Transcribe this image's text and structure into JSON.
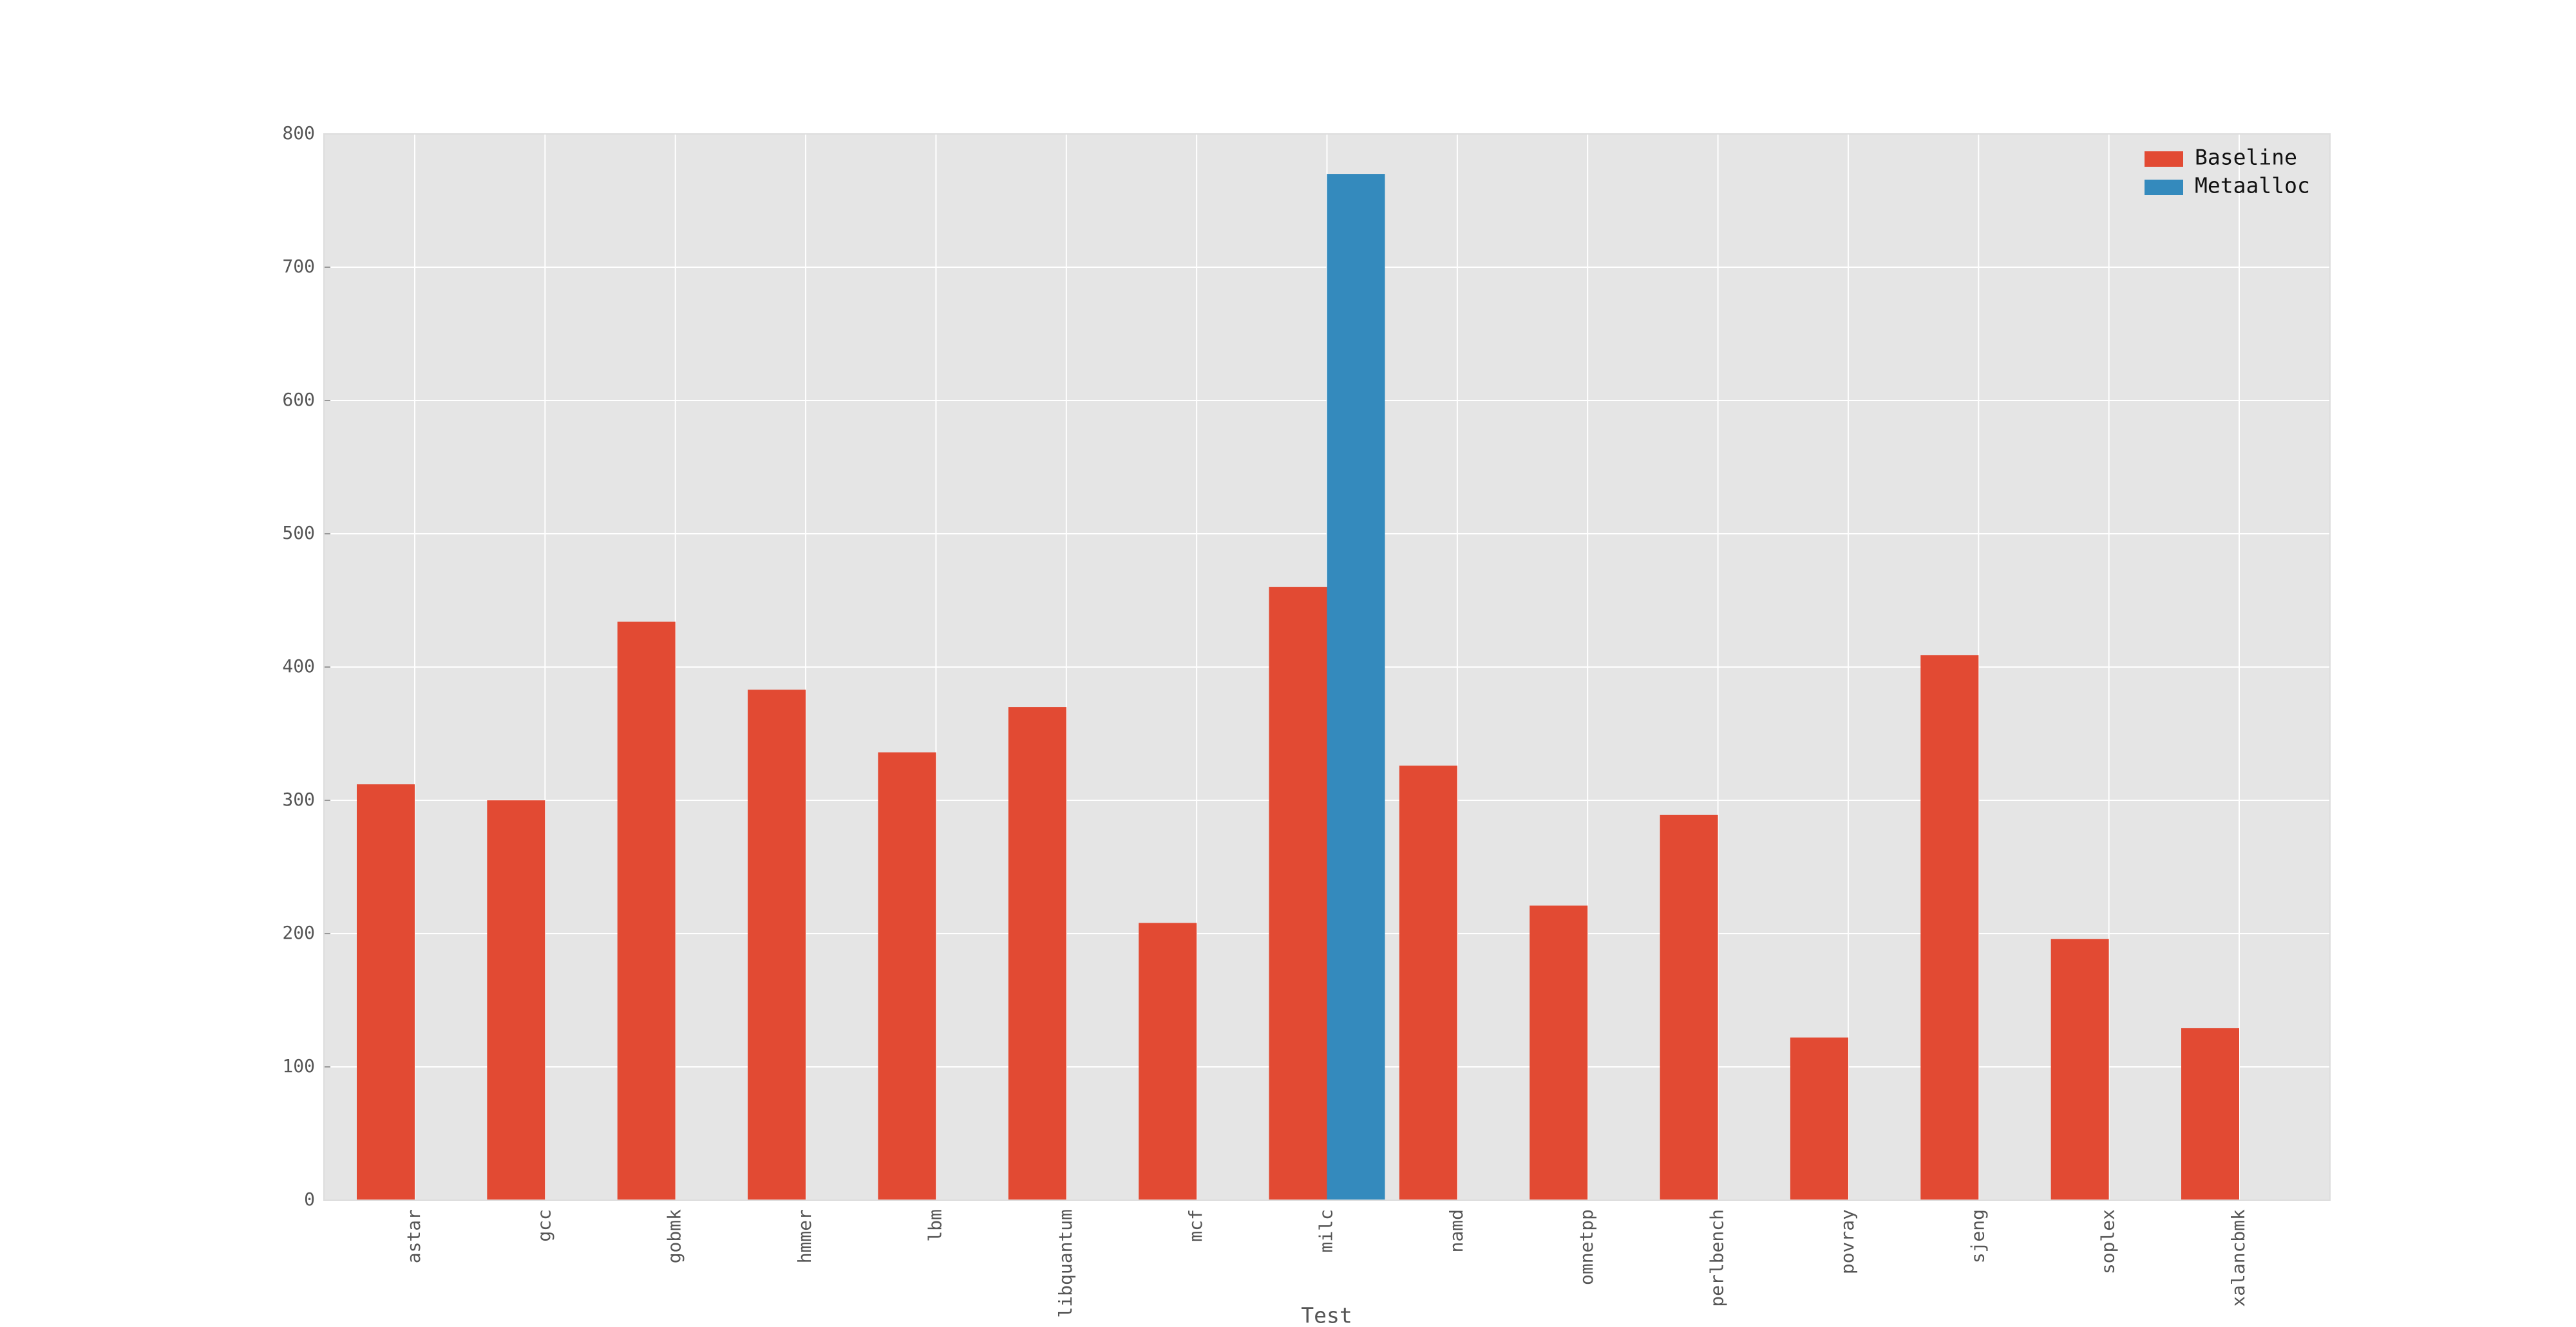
{
  "chart_data": {
    "type": "bar",
    "x_label": "Test",
    "categories": [
      "astar",
      "gcc",
      "gobmk",
      "hmmer",
      "lbm",
      "libquantum",
      "mcf",
      "milc",
      "namd",
      "omnetpp",
      "perlbench",
      "povray",
      "sjeng",
      "soplex",
      "xalancbmk"
    ],
    "series": [
      {
        "name": "Baseline",
        "color": "#E24A33",
        "values": [
          312,
          300,
          434,
          383,
          336,
          370,
          208,
          460,
          326,
          221,
          289,
          122,
          409,
          196,
          129
        ]
      },
      {
        "name": "Metaalloc",
        "color": "#348ABD",
        "values": [
          null,
          null,
          null,
          null,
          null,
          null,
          null,
          770,
          null,
          null,
          null,
          null,
          null,
          null,
          null
        ]
      }
    ],
    "ylim": [
      0,
      800
    ],
    "yticks": [
      0,
      100,
      200,
      300,
      400,
      500,
      600,
      700,
      800
    ],
    "grid": true,
    "legend": "upper right"
  }
}
